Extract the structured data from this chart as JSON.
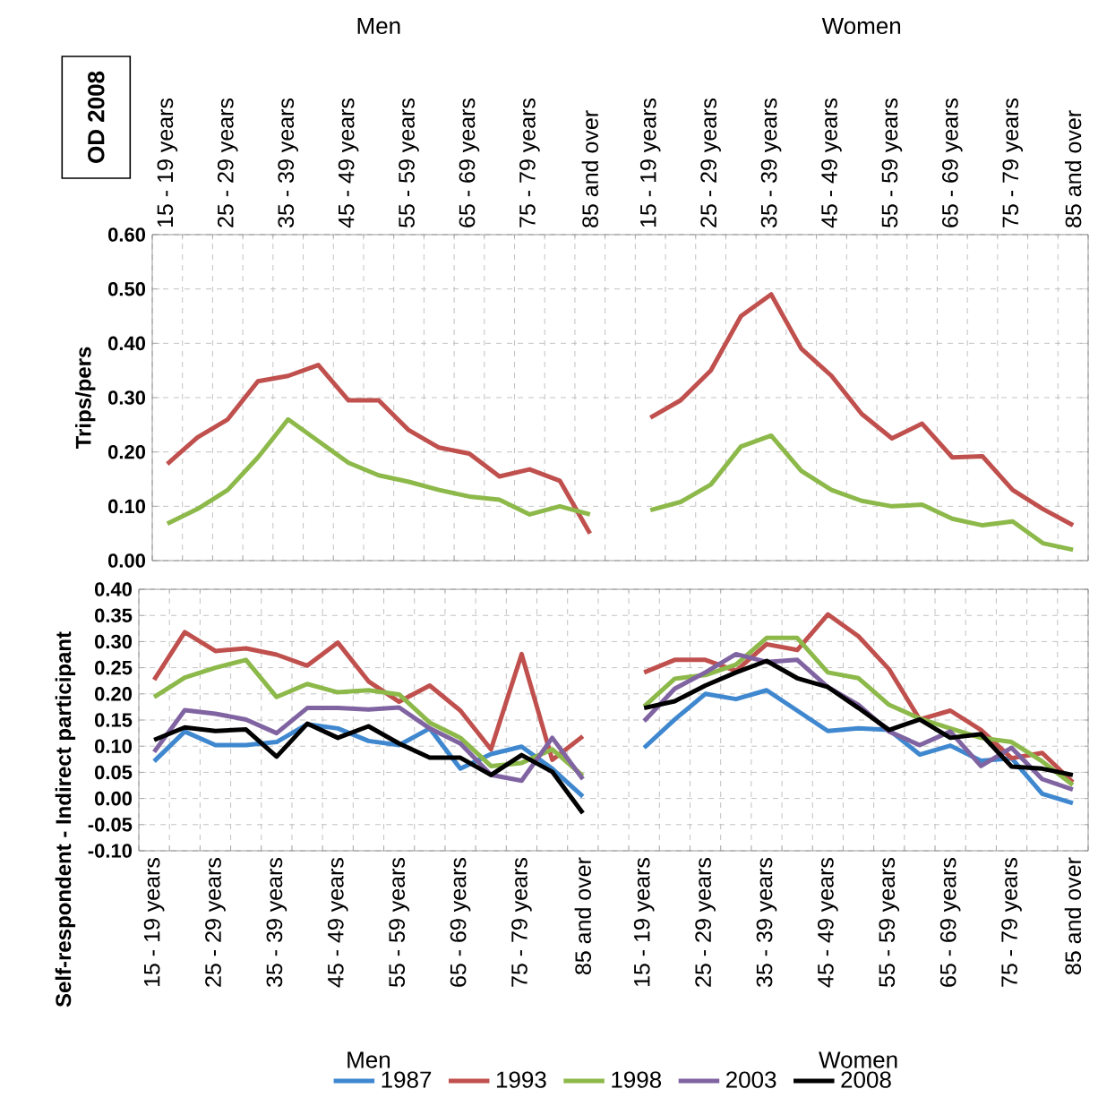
{
  "chart_data": [
    {
      "type": "line",
      "title": "OD 2008",
      "ylabel": "Trips/pers",
      "categories": [
        "15 - 19 years",
        null,
        "25 - 29 years",
        null,
        "35 - 39 years",
        null,
        "45 - 49 years",
        null,
        "55 - 59 years",
        null,
        "65 - 69 years",
        null,
        "75 - 79 years",
        null,
        "85 and over",
        null,
        "15 - 19 years",
        null,
        "25 - 29 years",
        null,
        "35 - 39 years",
        null,
        "45 - 49 years",
        null,
        "55 - 59 years",
        null,
        "65 - 69 years",
        null,
        "75 - 79 years",
        null,
        "85 and over"
      ],
      "series": [
        {
          "color": "#c0504d",
          "values": [
            0.178,
            0.227,
            0.26,
            0.33,
            0.34,
            0.36,
            0.295,
            0.295,
            0.24,
            0.208,
            0.197,
            0.155,
            0.168,
            0.147,
            0.05,
            null,
            0.263,
            0.295,
            0.35,
            0.45,
            0.49,
            0.39,
            0.34,
            0.27,
            0.225,
            0.252,
            0.19,
            0.192,
            0.13,
            0.095,
            0.065
          ]
        },
        {
          "color": "#8db94a",
          "values": [
            0.068,
            0.095,
            0.13,
            0.19,
            0.26,
            0.22,
            0.18,
            0.157,
            0.145,
            0.13,
            0.118,
            0.112,
            0.085,
            0.1,
            0.085,
            null,
            0.093,
            0.108,
            0.14,
            0.21,
            0.23,
            0.165,
            0.13,
            0.11,
            0.1,
            0.103,
            0.077,
            0.065,
            0.072,
            0.032,
            0.02
          ]
        }
      ],
      "ylim": [
        0,
        0.6
      ],
      "yticks": [
        {
          "value": 0,
          "label": "0.00"
        },
        {
          "value": 0.1,
          "label": "0.10"
        },
        {
          "value": 0.2,
          "label": "0.20"
        },
        {
          "value": 0.3,
          "label": "0.30"
        },
        {
          "value": 0.4,
          "label": "0.40"
        },
        {
          "value": 0.5,
          "label": "0.50"
        },
        {
          "value": 0.6,
          "label": "0.60"
        }
      ],
      "grid": true,
      "annotations": [
        "Men",
        "Women"
      ]
    },
    {
      "type": "line",
      "ylabel": "Self-respondent - Indirect participant",
      "categories": [
        "15 - 19 years",
        null,
        "25 - 29 years",
        null,
        "35 - 39 years",
        null,
        "45 - 49 years",
        null,
        "55 - 59 years",
        null,
        "65 - 69 years",
        null,
        "75 - 79 years",
        null,
        "85 and over",
        null,
        "15 - 19 years",
        null,
        "25 - 29 years",
        null,
        "35 - 39 years",
        null,
        "45 - 49 years",
        null,
        "55 - 59 years",
        null,
        "65 - 69 years",
        null,
        "75 - 79 years",
        null,
        "85 and over"
      ],
      "series": [
        {
          "name": "1987",
          "color": "#3f88cf",
          "values": [
            0.071,
            0.128,
            0.102,
            0.102,
            0.108,
            0.142,
            0.134,
            0.11,
            0.102,
            0.134,
            0.057,
            0.085,
            0.099,
            0.057,
            0.004,
            null,
            0.097,
            0.151,
            0.2,
            0.19,
            0.207,
            0.168,
            0.129,
            0.134,
            0.131,
            0.084,
            0.101,
            0.072,
            0.077,
            0.009,
            -0.009
          ]
        },
        {
          "name": "1993",
          "color": "#c0504d",
          "values": [
            0.227,
            0.318,
            0.282,
            0.287,
            0.275,
            0.254,
            0.298,
            0.224,
            0.185,
            0.216,
            0.168,
            0.094,
            0.276,
            0.074,
            0.119,
            null,
            0.241,
            0.265,
            0.265,
            0.244,
            0.295,
            0.284,
            0.352,
            0.31,
            0.247,
            0.151,
            0.168,
            0.131,
            0.077,
            0.087,
            0.031
          ]
        },
        {
          "name": "1998",
          "color": "#8db94a",
          "values": [
            0.194,
            0.231,
            0.25,
            0.265,
            0.194,
            0.219,
            0.203,
            0.207,
            0.199,
            0.145,
            0.116,
            0.062,
            0.068,
            0.094,
            0.043,
            null,
            0.176,
            0.229,
            0.236,
            0.256,
            0.307,
            0.307,
            0.241,
            0.23,
            0.179,
            0.153,
            0.134,
            0.116,
            0.108,
            0.071,
            0.026
          ]
        },
        {
          "name": "2003",
          "color": "#8064a2",
          "values": [
            0.089,
            0.169,
            0.162,
            0.151,
            0.125,
            0.173,
            0.173,
            0.17,
            0.174,
            0.134,
            0.105,
            0.045,
            0.034,
            0.116,
            0.037,
            null,
            0.148,
            0.21,
            0.241,
            0.276,
            0.261,
            0.265,
            0.213,
            0.179,
            0.128,
            0.102,
            0.128,
            0.062,
            0.097,
            0.037,
            0.017
          ]
        },
        {
          "name": "2008",
          "color": "#000000",
          "values": [
            0.112,
            0.136,
            0.129,
            0.132,
            0.08,
            0.143,
            0.116,
            0.138,
            0.105,
            0.078,
            0.078,
            0.045,
            0.083,
            0.051,
            -0.028,
            null,
            0.173,
            0.186,
            0.216,
            0.241,
            0.263,
            0.23,
            0.213,
            0.173,
            0.131,
            0.151,
            0.116,
            0.123,
            0.061,
            0.057,
            0.045
          ]
        }
      ],
      "ylim": [
        -0.1,
        0.4
      ],
      "yticks": [
        {
          "value": -0.1,
          "label": "-0.10"
        },
        {
          "value": -0.05,
          "label": "-0.05"
        },
        {
          "value": 0,
          "label": "0.00"
        },
        {
          "value": 0.05,
          "label": "0.05"
        },
        {
          "value": 0.1,
          "label": "0.10"
        },
        {
          "value": 0.15,
          "label": "0.15"
        },
        {
          "value": 0.2,
          "label": "0.20"
        },
        {
          "value": 0.25,
          "label": "0.25"
        },
        {
          "value": 0.3,
          "label": "0.30"
        },
        {
          "value": 0.35,
          "label": "0.35"
        },
        {
          "value": 0.4,
          "label": "0.40"
        }
      ],
      "grid": true,
      "legend": "bottom",
      "annotations": [
        "Men",
        "Women"
      ]
    }
  ]
}
